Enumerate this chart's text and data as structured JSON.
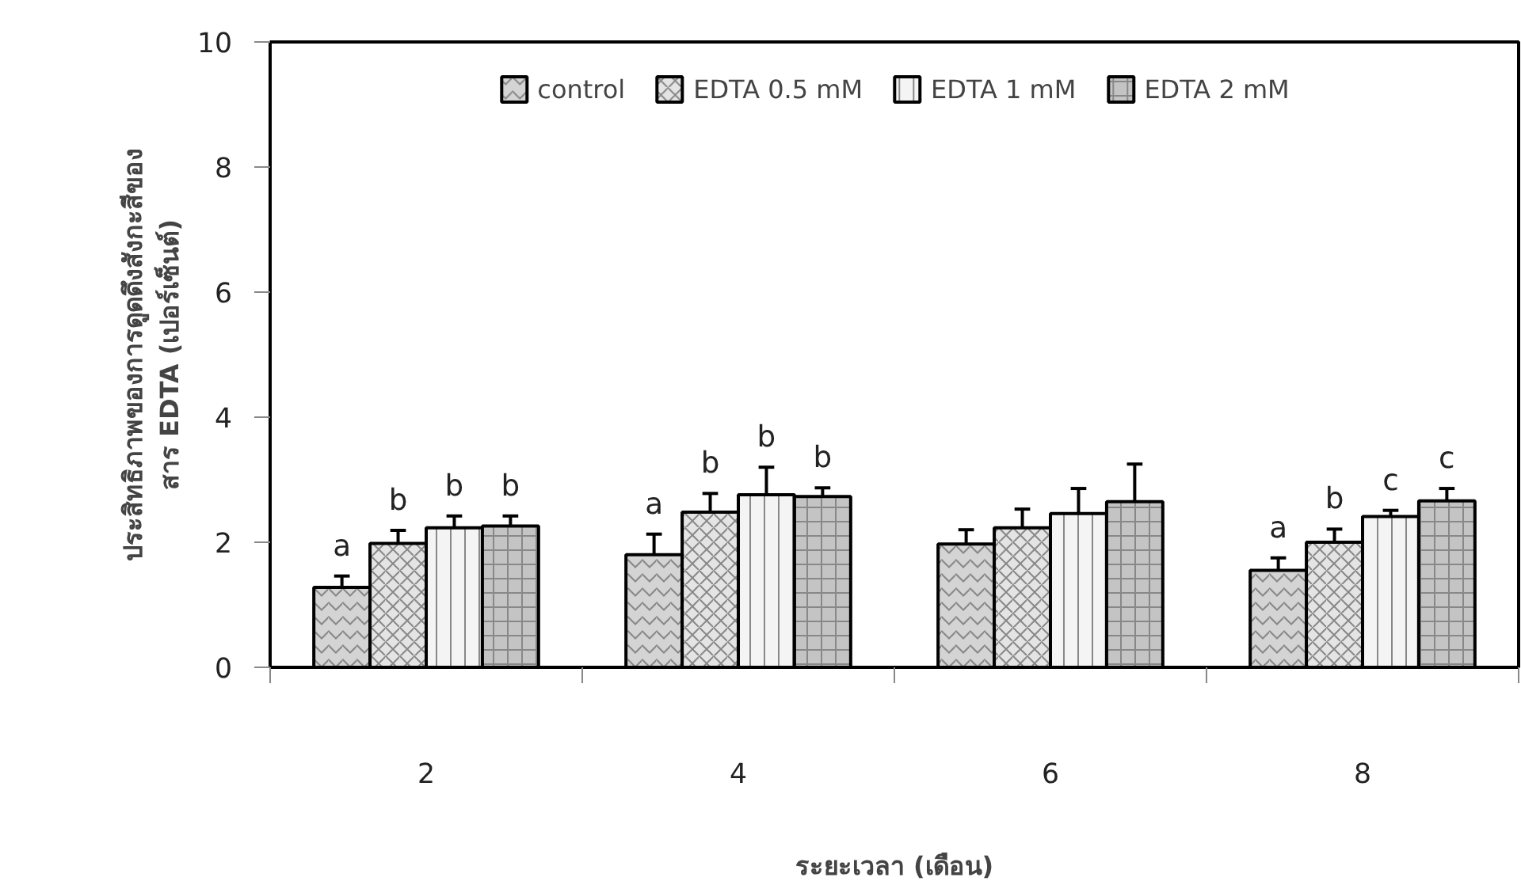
{
  "chart_data": {
    "type": "bar",
    "xlabel": "ระยะเวลา (เดือน)",
    "ylabel": "ประสิทธิภาพของการดูดดึงสังกะสีของ\nสาร EDTA (เปอร์เซ็นต์)",
    "categories": [
      "2",
      "4",
      "6",
      "8"
    ],
    "series": [
      {
        "name": "control",
        "color": "#d4d4d4",
        "values": [
          1.28,
          1.8,
          1.97,
          1.55
        ],
        "errors": [
          0.18,
          0.33,
          0.23,
          0.2
        ],
        "value_labels": [
          "a",
          "a",
          null,
          "a"
        ]
      },
      {
        "name": "EDTA 0.5 mM",
        "color": "#e4e4e4",
        "values": [
          1.98,
          2.48,
          2.23,
          2.0
        ],
        "errors": [
          0.21,
          0.3,
          0.3,
          0.21
        ],
        "value_labels": [
          "b",
          "b",
          null,
          "b"
        ]
      },
      {
        "name": "EDTA 1 mM",
        "color": "#f4f4f4",
        "values": [
          2.23,
          2.76,
          2.46,
          2.41
        ],
        "errors": [
          0.19,
          0.44,
          0.4,
          0.1
        ],
        "value_labels": [
          "b",
          "b",
          null,
          "c"
        ]
      },
      {
        "name": "EDTA 2 mM",
        "color": "#c4c4c4",
        "values": [
          2.26,
          2.73,
          2.65,
          2.66
        ],
        "errors": [
          0.16,
          0.14,
          0.6,
          0.2
        ],
        "value_labels": [
          "b",
          "b",
          null,
          "c"
        ]
      }
    ],
    "ylim": [
      0,
      10
    ],
    "yticks": [
      0,
      2,
      4,
      6,
      8,
      10
    ],
    "grid": false,
    "legend": "top"
  }
}
